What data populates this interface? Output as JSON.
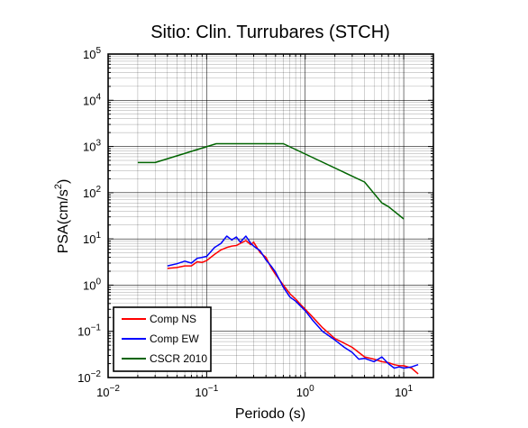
{
  "chart_data": {
    "type": "line",
    "title": "Sitio: Clin. Turrubares (STCH)",
    "xlabel": "Periodo (s)",
    "ylabel_main": "PSA(cm/s",
    "ylabel_sup": "2",
    "ylabel_close": ")",
    "x_scale": "log",
    "y_scale": "log",
    "xlim": [
      0.01,
      20
    ],
    "ylim": [
      0.01,
      100000
    ],
    "grid": true,
    "legend_position": "bottom-left",
    "x_ticks": [
      {
        "value": 0.01,
        "base": "10",
        "exp": "−2"
      },
      {
        "value": 0.1,
        "base": "10",
        "exp": "−1"
      },
      {
        "value": 1,
        "base": "10",
        "exp": "0"
      },
      {
        "value": 10,
        "base": "10",
        "exp": "1"
      }
    ],
    "y_ticks": [
      {
        "value": 0.01,
        "base": "10",
        "exp": "−2"
      },
      {
        "value": 0.1,
        "base": "10",
        "exp": "−1"
      },
      {
        "value": 1,
        "base": "10",
        "exp": "0"
      },
      {
        "value": 10,
        "base": "10",
        "exp": "1"
      },
      {
        "value": 100,
        "base": "10",
        "exp": "2"
      },
      {
        "value": 1000,
        "base": "10",
        "exp": "3"
      },
      {
        "value": 10000,
        "base": "10",
        "exp": "4"
      },
      {
        "value": 100000,
        "base": "10",
        "exp": "5"
      }
    ],
    "series": [
      {
        "name": "Comp NS",
        "color": "#ff0000",
        "x": [
          0.04,
          0.05,
          0.06,
          0.07,
          0.08,
          0.09,
          0.1,
          0.12,
          0.14,
          0.16,
          0.18,
          0.2,
          0.22,
          0.25,
          0.28,
          0.3,
          0.35,
          0.4,
          0.45,
          0.5,
          0.6,
          0.7,
          0.8,
          0.9,
          1.0,
          1.2,
          1.5,
          2.0,
          2.5,
          3.0,
          3.5,
          4.0,
          5.0,
          6.0,
          7.0,
          8.0,
          9.0,
          10.0,
          12.0,
          14.0
        ],
        "y": [
          2.3,
          2.4,
          2.6,
          2.6,
          3.2,
          3.1,
          3.4,
          4.6,
          5.8,
          6.5,
          7.0,
          7.2,
          8.0,
          9.2,
          7.5,
          8.5,
          5.0,
          4.0,
          2.4,
          1.7,
          1.0,
          0.65,
          0.5,
          0.38,
          0.3,
          0.2,
          0.12,
          0.07,
          0.055,
          0.045,
          0.035,
          0.028,
          0.025,
          0.022,
          0.021,
          0.019,
          0.018,
          0.018,
          0.016,
          0.012
        ]
      },
      {
        "name": "Comp EW",
        "color": "#0000ff",
        "x": [
          0.04,
          0.05,
          0.06,
          0.07,
          0.08,
          0.09,
          0.1,
          0.12,
          0.14,
          0.16,
          0.18,
          0.2,
          0.22,
          0.25,
          0.28,
          0.3,
          0.35,
          0.4,
          0.45,
          0.5,
          0.6,
          0.7,
          0.8,
          0.9,
          1.0,
          1.2,
          1.5,
          2.0,
          2.5,
          3.0,
          3.5,
          4.0,
          5.0,
          6.0,
          7.0,
          8.0,
          9.0,
          10.0,
          12.0,
          14.0
        ],
        "y": [
          2.6,
          2.9,
          3.3,
          3.0,
          3.8,
          4.0,
          4.2,
          6.5,
          8.0,
          11.5,
          9.5,
          11.0,
          8.5,
          11.5,
          8.0,
          7.0,
          5.5,
          3.5,
          2.6,
          1.9,
          0.9,
          0.55,
          0.45,
          0.35,
          0.28,
          0.17,
          0.1,
          0.065,
          0.045,
          0.035,
          0.025,
          0.026,
          0.022,
          0.028,
          0.02,
          0.016,
          0.017,
          0.016,
          0.017,
          0.019
        ]
      },
      {
        "name": "CSCR 2010",
        "color": "#006400",
        "x": [
          0.02,
          0.03,
          0.125,
          0.6,
          4.0,
          6.0,
          7.0,
          10.0
        ],
        "y": [
          450,
          450,
          1150,
          1150,
          170,
          60,
          50,
          27
        ]
      }
    ]
  }
}
